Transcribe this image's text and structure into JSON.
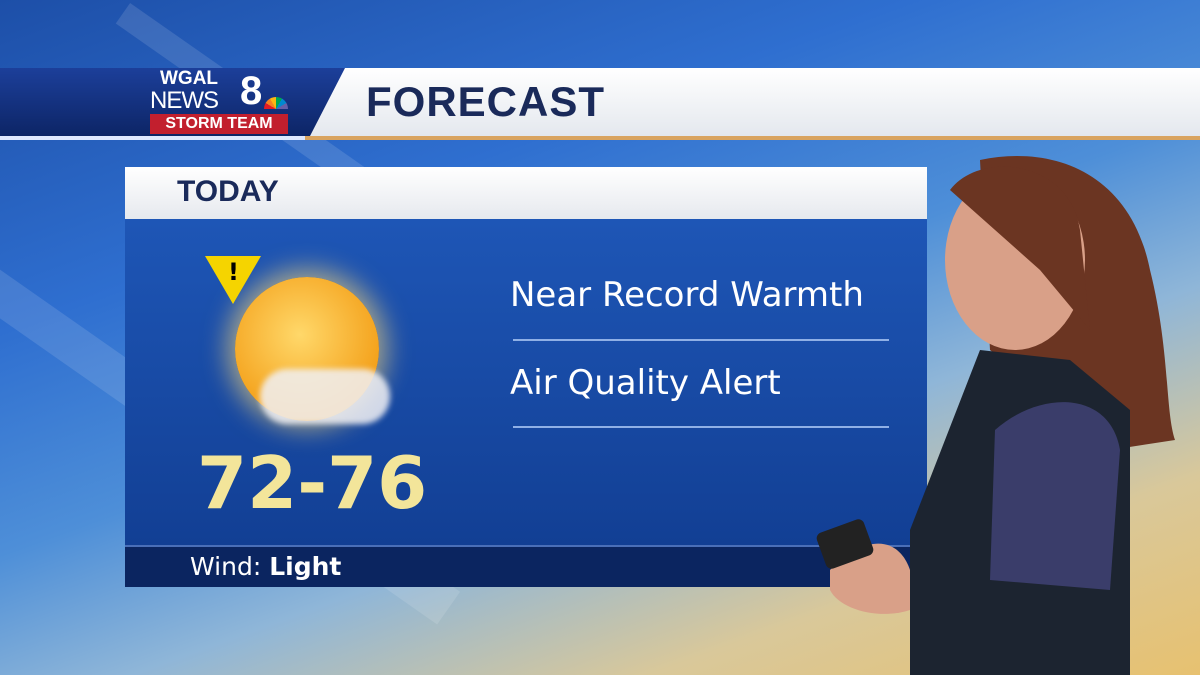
{
  "header": {
    "logo_line1": "WGAL",
    "logo_line2": "NEWS",
    "logo_number": "8",
    "logo_tag": "STORM TEAM",
    "title": "FORECAST"
  },
  "card": {
    "heading": "TODAY",
    "icon": "sun-partly-cloudy-icon",
    "alert_icon": "warning-triangle-icon",
    "alert_symbol": "!",
    "temperature": "72-76",
    "notes": [
      "Near Record Warmth",
      "Air Quality Alert"
    ],
    "wind_label": "Wind:",
    "wind_value": "Light"
  },
  "colors": {
    "title_navy": "#1a2a5a",
    "card_blue": "#1e56b6",
    "temp_yellow": "#f3e59a",
    "storm_red": "#c21f2e",
    "accent_gold": "#d9a460"
  }
}
